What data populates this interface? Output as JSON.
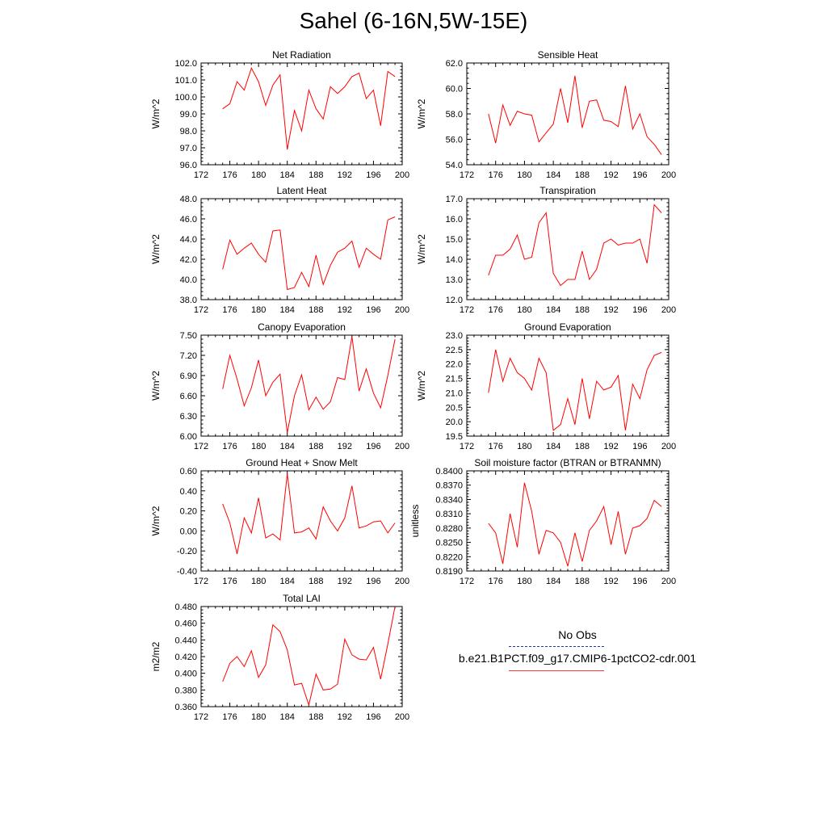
{
  "title": "Sahel (6-16N,5W-15E)",
  "legend": {
    "entries": [
      {
        "label": "No Obs",
        "color": "#2233aa",
        "dash": true
      },
      {
        "label": "b.e21.B1PCT.f09_g17.CMIP6-1pctCO2-cdr.001",
        "color": "#ff3b3b",
        "dash": false
      }
    ]
  },
  "colors": {
    "series": "#ff0000"
  },
  "chart_data": [
    {
      "type": "line",
      "title": "Net Radiation",
      "ylabel": "W/m^2",
      "xlim": [
        172,
        200
      ],
      "xticks": [
        172,
        176,
        180,
        184,
        188,
        192,
        196,
        200
      ],
      "ylim": [
        96,
        102
      ],
      "yticks": [
        96,
        97,
        98,
        99,
        100,
        101,
        102
      ],
      "ydec": 1,
      "x": [
        175,
        176,
        177,
        178,
        179,
        180,
        181,
        182,
        183,
        184,
        185,
        186,
        187,
        188,
        189,
        190,
        191,
        192,
        193,
        194,
        195,
        196,
        197,
        198,
        199
      ],
      "series": [
        {
          "values": [
            99.3,
            99.6,
            100.9,
            100.4,
            101.7,
            100.9,
            99.5,
            100.7,
            101.3,
            96.9,
            99.2,
            98.0,
            100.4,
            99.3,
            98.7,
            100.6,
            100.2,
            100.6,
            101.2,
            101.4,
            99.9,
            100.4,
            98.3,
            101.5,
            101.2
          ]
        }
      ]
    },
    {
      "type": "line",
      "title": "Sensible Heat",
      "ylabel": "W/m^2",
      "xlim": [
        172,
        200
      ],
      "xticks": [
        172,
        176,
        180,
        184,
        188,
        192,
        196,
        200
      ],
      "ylim": [
        54,
        62
      ],
      "yticks": [
        54,
        56,
        58,
        60,
        62
      ],
      "ydec": 1,
      "x": [
        175,
        176,
        177,
        178,
        179,
        180,
        181,
        182,
        183,
        184,
        185,
        186,
        187,
        188,
        189,
        190,
        191,
        192,
        193,
        194,
        195,
        196,
        197,
        198,
        199
      ],
      "series": [
        {
          "values": [
            58.0,
            55.7,
            58.7,
            57.1,
            58.2,
            58.0,
            57.9,
            55.8,
            56.5,
            57.2,
            60.0,
            57.3,
            61.0,
            56.9,
            59.0,
            59.1,
            57.5,
            57.4,
            57.0,
            60.2,
            56.8,
            58.0,
            56.2,
            55.6,
            54.8
          ]
        }
      ]
    },
    {
      "type": "line",
      "title": "Latent Heat",
      "ylabel": "W/m^2",
      "xlim": [
        172,
        200
      ],
      "xticks": [
        172,
        176,
        180,
        184,
        188,
        192,
        196,
        200
      ],
      "ylim": [
        38,
        48
      ],
      "yticks": [
        38,
        40,
        42,
        44,
        46,
        48
      ],
      "ydec": 1,
      "x": [
        175,
        176,
        177,
        178,
        179,
        180,
        181,
        182,
        183,
        184,
        185,
        186,
        187,
        188,
        189,
        190,
        191,
        192,
        193,
        194,
        195,
        196,
        197,
        198,
        199
      ],
      "series": [
        {
          "values": [
            41.0,
            43.9,
            42.5,
            43.1,
            43.6,
            42.5,
            41.7,
            44.8,
            44.9,
            39.0,
            39.2,
            40.7,
            39.3,
            42.4,
            39.5,
            41.4,
            42.7,
            43.1,
            43.8,
            41.2,
            43.1,
            42.5,
            42.0,
            45.9,
            46.2
          ]
        }
      ]
    },
    {
      "type": "line",
      "title": "Transpiration",
      "ylabel": "W/m^2",
      "xlim": [
        172,
        200
      ],
      "xticks": [
        172,
        176,
        180,
        184,
        188,
        192,
        196,
        200
      ],
      "ylim": [
        12,
        17
      ],
      "yticks": [
        12,
        13,
        14,
        15,
        16,
        17
      ],
      "ydec": 1,
      "x": [
        175,
        176,
        177,
        178,
        179,
        180,
        181,
        182,
        183,
        184,
        185,
        186,
        187,
        188,
        189,
        190,
        191,
        192,
        193,
        194,
        195,
        196,
        197,
        198,
        199
      ],
      "series": [
        {
          "values": [
            13.2,
            14.2,
            14.2,
            14.5,
            15.2,
            14.0,
            14.1,
            15.8,
            16.3,
            13.3,
            12.7,
            13.0,
            13.0,
            14.4,
            13.0,
            13.5,
            14.8,
            15.0,
            14.7,
            14.8,
            14.8,
            15.0,
            13.8,
            16.7,
            16.3
          ]
        }
      ]
    },
    {
      "type": "line",
      "title": "Canopy Evaporation",
      "ylabel": "W/m^2",
      "xlim": [
        172,
        200
      ],
      "xticks": [
        172,
        176,
        180,
        184,
        188,
        192,
        196,
        200
      ],
      "ylim": [
        6.0,
        7.5
      ],
      "yticks": [
        6.0,
        6.3,
        6.6,
        6.9,
        7.2,
        7.5
      ],
      "ydec": 2,
      "x": [
        175,
        176,
        177,
        178,
        179,
        180,
        181,
        182,
        183,
        184,
        185,
        186,
        187,
        188,
        189,
        190,
        191,
        192,
        193,
        194,
        195,
        196,
        197,
        198,
        199
      ],
      "series": [
        {
          "values": [
            6.7,
            7.2,
            6.85,
            6.45,
            6.72,
            7.13,
            6.6,
            6.8,
            6.92,
            6.05,
            6.6,
            6.91,
            6.39,
            6.58,
            6.4,
            6.51,
            6.87,
            6.84,
            7.48,
            6.67,
            7.0,
            6.64,
            6.42,
            6.9,
            7.44
          ]
        }
      ]
    },
    {
      "type": "line",
      "title": "Ground Evaporation",
      "ylabel": "W/m^2",
      "xlim": [
        172,
        200
      ],
      "xticks": [
        172,
        176,
        180,
        184,
        188,
        192,
        196,
        200
      ],
      "ylim": [
        19.5,
        23.0
      ],
      "yticks": [
        19.5,
        20.0,
        20.5,
        21.0,
        21.5,
        22.0,
        22.5,
        23.0
      ],
      "ydec": 1,
      "x": [
        175,
        176,
        177,
        178,
        179,
        180,
        181,
        182,
        183,
        184,
        185,
        186,
        187,
        188,
        189,
        190,
        191,
        192,
        193,
        194,
        195,
        196,
        197,
        198,
        199
      ],
      "series": [
        {
          "values": [
            21.0,
            22.5,
            21.4,
            22.2,
            21.7,
            21.5,
            21.1,
            22.2,
            21.7,
            19.7,
            19.9,
            20.8,
            19.9,
            21.5,
            20.1,
            21.4,
            21.1,
            21.2,
            21.6,
            19.7,
            21.3,
            20.8,
            21.8,
            22.3,
            22.4
          ]
        }
      ]
    },
    {
      "type": "line",
      "title": "Ground Heat + Snow Melt",
      "ylabel": "W/m^2",
      "xlim": [
        172,
        200
      ],
      "xticks": [
        172,
        176,
        180,
        184,
        188,
        192,
        196,
        200
      ],
      "ylim": [
        -0.4,
        0.6
      ],
      "yticks": [
        -0.4,
        -0.2,
        0.0,
        0.2,
        0.4,
        0.6
      ],
      "ydec": 2,
      "x": [
        175,
        176,
        177,
        178,
        179,
        180,
        181,
        182,
        183,
        184,
        185,
        186,
        187,
        188,
        189,
        190,
        191,
        192,
        193,
        194,
        195,
        196,
        197,
        198,
        199
      ],
      "series": [
        {
          "values": [
            0.27,
            0.08,
            -0.23,
            0.13,
            -0.02,
            0.33,
            -0.07,
            -0.03,
            -0.09,
            0.57,
            -0.02,
            -0.01,
            0.03,
            -0.08,
            0.24,
            0.1,
            0.0,
            0.13,
            0.45,
            0.03,
            0.05,
            0.09,
            0.1,
            -0.02,
            0.08
          ]
        }
      ]
    },
    {
      "type": "line",
      "title": "Soil moisture factor (BTRAN or BTRANMN)",
      "ylabel": "unitless",
      "xlim": [
        172,
        200
      ],
      "xticks": [
        172,
        176,
        180,
        184,
        188,
        192,
        196,
        200
      ],
      "ylim": [
        0.819,
        0.84
      ],
      "yticks": [
        0.819,
        0.822,
        0.825,
        0.828,
        0.831,
        0.834,
        0.837,
        0.84
      ],
      "ydec": 4,
      "x": [
        175,
        176,
        177,
        178,
        179,
        180,
        181,
        182,
        183,
        184,
        185,
        186,
        187,
        188,
        189,
        190,
        191,
        192,
        193,
        194,
        195,
        196,
        197,
        198,
        199
      ],
      "series": [
        {
          "values": [
            0.829,
            0.827,
            0.8205,
            0.831,
            0.824,
            0.8375,
            0.8315,
            0.8225,
            0.8275,
            0.827,
            0.825,
            0.82,
            0.827,
            0.821,
            0.8275,
            0.8295,
            0.8325,
            0.8245,
            0.8315,
            0.8225,
            0.828,
            0.8285,
            0.83,
            0.8338,
            0.8325
          ]
        }
      ]
    },
    {
      "type": "line",
      "title": "Total LAI",
      "ylabel": "m2/m2",
      "xlim": [
        172,
        200
      ],
      "xticks": [
        172,
        176,
        180,
        184,
        188,
        192,
        196,
        200
      ],
      "ylim": [
        0.36,
        0.48
      ],
      "yticks": [
        0.36,
        0.38,
        0.4,
        0.42,
        0.44,
        0.46,
        0.48
      ],
      "ydec": 3,
      "x": [
        175,
        176,
        177,
        178,
        179,
        180,
        181,
        182,
        183,
        184,
        185,
        186,
        187,
        188,
        189,
        190,
        191,
        192,
        193,
        194,
        195,
        196,
        197,
        198,
        199
      ],
      "series": [
        {
          "values": [
            0.39,
            0.412,
            0.42,
            0.408,
            0.427,
            0.395,
            0.41,
            0.458,
            0.45,
            0.428,
            0.386,
            0.388,
            0.362,
            0.399,
            0.38,
            0.381,
            0.387,
            0.441,
            0.422,
            0.417,
            0.416,
            0.431,
            0.393,
            0.435,
            0.48
          ]
        }
      ]
    }
  ]
}
